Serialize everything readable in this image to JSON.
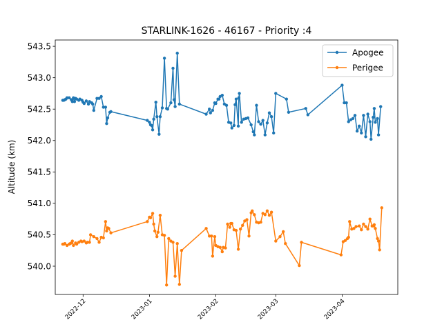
{
  "chart_data": {
    "type": "line",
    "title": "STARLINK-1626 - 46167 - Priority :4",
    "xlabel": "",
    "ylabel": "Altitude (km)",
    "ylim": [
      539.55,
      543.6
    ],
    "xlim": [
      "2022-11-18",
      "2023-04-27"
    ],
    "yticks": [
      540.0,
      540.5,
      541.0,
      541.5,
      542.0,
      542.5,
      543.0,
      543.5
    ],
    "ytick_labels": [
      "540.0",
      "540.5",
      "541.0",
      "541.5",
      "542.0",
      "542.5",
      "543.0",
      "543.5"
    ],
    "xticks": [
      "2022-12-01",
      "2023-01-01",
      "2023-02-01",
      "2023-03-01",
      "2023-04-01"
    ],
    "xtick_labels": [
      "2022-12",
      "2023-01",
      "2023-02",
      "2023-03",
      "2023-04"
    ],
    "legend_position": "upper right",
    "grid": false,
    "series": [
      {
        "name": "Apogee",
        "color": "#1f77b4",
        "marker": "circle",
        "points": [
          [
            "2022-11-21T12:00",
            542.64
          ],
          [
            "2022-11-22T00:00",
            542.64
          ],
          [
            "2022-11-22T12:00",
            542.65
          ],
          [
            "2022-11-23T00:00",
            542.66
          ],
          [
            "2022-11-23T12:00",
            542.68
          ],
          [
            "2022-11-24T12:00",
            542.68
          ],
          [
            "2022-11-25T12:00",
            542.65
          ],
          [
            "2022-11-26T00:00",
            542.62
          ],
          [
            "2022-11-26T12:00",
            542.68
          ],
          [
            "2022-11-27T00:00",
            542.62
          ],
          [
            "2022-11-27T12:00",
            542.67
          ],
          [
            "2022-11-28T00:00",
            542.66
          ],
          [
            "2022-11-29T00:00",
            542.64
          ],
          [
            "2022-11-29T12:00",
            542.66
          ],
          [
            "2022-11-30T12:00",
            542.64
          ],
          [
            "2022-12-01T00:00",
            542.61
          ],
          [
            "2022-12-01T12:00",
            542.59
          ],
          [
            "2022-12-02T12:00",
            542.63
          ],
          [
            "2022-12-03T12:00",
            542.58
          ],
          [
            "2022-12-04T00:00",
            542.62
          ],
          [
            "2022-12-05T00:00",
            542.6
          ],
          [
            "2022-12-05T12:00",
            542.58
          ],
          [
            "2022-12-06T00:00",
            542.48
          ],
          [
            "2022-12-07T12:00",
            542.67
          ],
          [
            "2022-12-08T12:00",
            542.67
          ],
          [
            "2022-12-09T12:00",
            542.7
          ],
          [
            "2022-12-10T12:00",
            542.53
          ],
          [
            "2022-12-11T12:00",
            542.53
          ],
          [
            "2022-12-12T00:00",
            542.27
          ],
          [
            "2022-12-12T12:00",
            542.36
          ],
          [
            "2022-12-13T12:00",
            542.45
          ],
          [
            "2022-12-14T00:00",
            542.46
          ],
          [
            "2022-12-31T00:00",
            542.32
          ],
          [
            "2023-01-01T00:00",
            542.29
          ],
          [
            "2023-01-01T12:00",
            542.25
          ],
          [
            "2023-01-02T00:00",
            542.24
          ],
          [
            "2023-01-02T12:00",
            542.17
          ],
          [
            "2023-01-03T00:00",
            542.34
          ],
          [
            "2023-01-04T00:00",
            542.61
          ],
          [
            "2023-01-04T12:00",
            542.38
          ],
          [
            "2023-01-05T12:00",
            542.1
          ],
          [
            "2023-01-06T00:00",
            542.38
          ],
          [
            "2023-01-07T00:00",
            542.52
          ],
          [
            "2023-01-08T00:00",
            543.31
          ],
          [
            "2023-01-09T00:00",
            542.51
          ],
          [
            "2023-01-09T12:00",
            542.5
          ],
          [
            "2023-01-11T00:00",
            542.6
          ],
          [
            "2023-01-12T00:00",
            543.15
          ],
          [
            "2023-01-12T12:00",
            542.65
          ],
          [
            "2023-01-13T00:00",
            542.54
          ],
          [
            "2023-01-14T00:00",
            543.39
          ],
          [
            "2023-01-15T00:00",
            542.58
          ],
          [
            "2023-01-27T12:00",
            542.42
          ],
          [
            "2023-01-29T00:00",
            542.5
          ],
          [
            "2023-01-29T12:00",
            542.44
          ],
          [
            "2023-01-30T12:00",
            542.48
          ],
          [
            "2023-01-31T12:00",
            542.6
          ],
          [
            "2023-02-01T00:00",
            542.59
          ],
          [
            "2023-02-02T00:00",
            542.66
          ],
          [
            "2023-02-02T12:00",
            542.66
          ],
          [
            "2023-02-03T00:00",
            542.7
          ],
          [
            "2023-02-04T00:00",
            542.72
          ],
          [
            "2023-02-05T00:00",
            542.58
          ],
          [
            "2023-02-06T00:00",
            542.56
          ],
          [
            "2023-02-07T00:00",
            542.29
          ],
          [
            "2023-02-08T00:00",
            542.28
          ],
          [
            "2023-02-08T12:00",
            542.2
          ],
          [
            "2023-02-09T12:00",
            542.24
          ],
          [
            "2023-02-10T00:00",
            542.57
          ],
          [
            "2023-02-10T12:00",
            542.66
          ],
          [
            "2023-02-11T12:00",
            542.23
          ],
          [
            "2023-02-11T18:00",
            542.68
          ],
          [
            "2023-02-12T00:00",
            542.75
          ],
          [
            "2023-02-13T00:00",
            542.29
          ],
          [
            "2023-02-14T00:00",
            542.34
          ],
          [
            "2023-02-15T00:00",
            542.35
          ],
          [
            "2023-02-16T00:00",
            542.36
          ],
          [
            "2023-02-17T12:00",
            542.25
          ],
          [
            "2023-02-18T12:00",
            542.14
          ],
          [
            "2023-02-19T00:00",
            542.09
          ],
          [
            "2023-02-20T00:00",
            542.56
          ],
          [
            "2023-02-21T00:00",
            542.3
          ],
          [
            "2023-02-22T00:00",
            542.26
          ],
          [
            "2023-02-23T00:00",
            542.32
          ],
          [
            "2023-02-24T00:00",
            542.09
          ],
          [
            "2023-02-25T00:00",
            542.28
          ],
          [
            "2023-02-26T00:00",
            542.44
          ],
          [
            "2023-02-27T00:00",
            542.38
          ],
          [
            "2023-02-28T00:00",
            542.12
          ],
          [
            "2023-03-01T00:00",
            542.75
          ],
          [
            "2023-03-06T00:00",
            542.66
          ],
          [
            "2023-03-07T00:00",
            542.45
          ],
          [
            "2023-03-15T00:00",
            542.51
          ],
          [
            "2023-03-16T00:00",
            542.41
          ],
          [
            "2023-04-01T00:00",
            542.88
          ],
          [
            "2023-04-02T00:00",
            542.6
          ],
          [
            "2023-04-03T00:00",
            542.6
          ],
          [
            "2023-04-04T00:00",
            542.3
          ],
          [
            "2023-04-05T00:00",
            542.33
          ],
          [
            "2023-04-06T00:00",
            542.35
          ],
          [
            "2023-04-07T00:00",
            542.4
          ],
          [
            "2023-04-08T00:00",
            542.15
          ],
          [
            "2023-04-09T00:00",
            542.23
          ],
          [
            "2023-04-10T00:00",
            542.12
          ],
          [
            "2023-04-11T00:00",
            542.4
          ],
          [
            "2023-04-12T00:00",
            542.06
          ],
          [
            "2023-04-13T00:00",
            542.42
          ],
          [
            "2023-04-14T00:00",
            542.3
          ],
          [
            "2023-04-14T12:00",
            542.02
          ],
          [
            "2023-04-15T12:00",
            542.37
          ],
          [
            "2023-04-16T00:00",
            542.51
          ],
          [
            "2023-04-16T12:00",
            542.29
          ],
          [
            "2023-04-17T12:00",
            542.35
          ],
          [
            "2023-04-18T00:00",
            542.09
          ],
          [
            "2023-04-19T00:00",
            542.54
          ]
        ]
      },
      {
        "name": "Perigee",
        "color": "#ff7f0e",
        "marker": "circle",
        "points": [
          [
            "2022-11-21T12:00",
            540.35
          ],
          [
            "2022-11-22T00:00",
            540.35
          ],
          [
            "2022-11-22T12:00",
            540.36
          ],
          [
            "2022-11-23T12:00",
            540.33
          ],
          [
            "2022-11-24T12:00",
            540.35
          ],
          [
            "2022-11-25T00:00",
            540.36
          ],
          [
            "2022-11-25T12:00",
            540.37
          ],
          [
            "2022-11-26T00:00",
            540.4
          ],
          [
            "2022-11-26T12:00",
            540.33
          ],
          [
            "2022-11-27T12:00",
            540.37
          ],
          [
            "2022-11-28T00:00",
            540.35
          ],
          [
            "2022-11-29T00:00",
            540.38
          ],
          [
            "2022-11-30T00:00",
            540.4
          ],
          [
            "2022-11-30T12:00",
            540.39
          ],
          [
            "2022-12-01T12:00",
            540.4
          ],
          [
            "2022-12-02T12:00",
            540.37
          ],
          [
            "2022-12-03T00:00",
            540.38
          ],
          [
            "2022-12-04T00:00",
            540.38
          ],
          [
            "2022-12-04T12:00",
            540.5
          ],
          [
            "2022-12-06T00:00",
            540.47
          ],
          [
            "2022-12-07T12:00",
            540.44
          ],
          [
            "2022-12-08T12:00",
            540.38
          ],
          [
            "2022-12-09T12:00",
            540.46
          ],
          [
            "2022-12-10T12:00",
            540.45
          ],
          [
            "2022-12-11T12:00",
            540.71
          ],
          [
            "2022-12-12T00:00",
            540.56
          ],
          [
            "2022-12-12T12:00",
            540.61
          ],
          [
            "2022-12-13T00:00",
            540.6
          ],
          [
            "2022-12-14T00:00",
            540.53
          ],
          [
            "2022-12-31T00:00",
            540.71
          ],
          [
            "2023-01-01T00:00",
            540.78
          ],
          [
            "2023-01-01T12:00",
            540.77
          ],
          [
            "2023-01-02T12:00",
            540.84
          ],
          [
            "2023-01-03T00:00",
            540.67
          ],
          [
            "2023-01-03T12:00",
            540.56
          ],
          [
            "2023-01-04T12:00",
            540.47
          ],
          [
            "2023-01-05T00:00",
            540.54
          ],
          [
            "2023-01-06T00:00",
            540.81
          ],
          [
            "2023-01-07T00:00",
            540.5
          ],
          [
            "2023-01-08T00:00",
            540.49
          ],
          [
            "2023-01-09T00:00",
            539.7
          ],
          [
            "2023-01-10T00:00",
            540.44
          ],
          [
            "2023-01-11T00:00",
            540.4
          ],
          [
            "2023-01-12T00:00",
            540.38
          ],
          [
            "2023-01-13T00:00",
            539.84
          ],
          [
            "2023-01-14T00:00",
            540.36
          ],
          [
            "2023-01-15T00:00",
            539.71
          ],
          [
            "2023-01-16T00:00",
            540.25
          ],
          [
            "2023-01-27T12:00",
            540.6
          ],
          [
            "2023-01-29T00:00",
            540.48
          ],
          [
            "2023-01-30T00:00",
            540.48
          ],
          [
            "2023-01-30T12:00",
            540.16
          ],
          [
            "2023-01-31T12:00",
            540.47
          ],
          [
            "2023-02-01T00:00",
            540.33
          ],
          [
            "2023-02-02T00:00",
            540.31
          ],
          [
            "2023-02-03T00:00",
            540.3
          ],
          [
            "2023-02-04T00:00",
            540.23
          ],
          [
            "2023-02-04T12:00",
            540.3
          ],
          [
            "2023-02-05T12:00",
            540.29
          ],
          [
            "2023-02-06T12:00",
            540.67
          ],
          [
            "2023-02-07T12:00",
            540.62
          ],
          [
            "2023-02-08T00:00",
            540.68
          ],
          [
            "2023-02-08T12:00",
            540.68
          ],
          [
            "2023-02-09T12:00",
            540.58
          ],
          [
            "2023-02-10T12:00",
            540.57
          ],
          [
            "2023-02-11T12:00",
            540.27
          ],
          [
            "2023-02-12T12:00",
            540.59
          ],
          [
            "2023-02-13T12:00",
            540.65
          ],
          [
            "2023-02-14T12:00",
            540.72
          ],
          [
            "2023-02-15T12:00",
            540.74
          ],
          [
            "2023-02-16T12:00",
            540.48
          ],
          [
            "2023-02-17T12:00",
            540.85
          ],
          [
            "2023-02-18T00:00",
            540.88
          ],
          [
            "2023-02-19T00:00",
            540.82
          ],
          [
            "2023-02-20T00:00",
            540.7
          ],
          [
            "2023-02-21T00:00",
            540.69
          ],
          [
            "2023-02-22T00:00",
            540.7
          ],
          [
            "2023-02-23T00:00",
            540.84
          ],
          [
            "2023-02-24T00:00",
            540.82
          ],
          [
            "2023-02-25T00:00",
            540.88
          ],
          [
            "2023-02-26T00:00",
            540.81
          ],
          [
            "2023-02-27T00:00",
            540.86
          ],
          [
            "2023-03-01T00:00",
            540.4
          ],
          [
            "2023-03-03T00:00",
            540.47
          ],
          [
            "2023-03-04T12:00",
            540.55
          ],
          [
            "2023-03-05T12:00",
            540.36
          ],
          [
            "2023-03-12T00:00",
            540.01
          ],
          [
            "2023-03-13T00:00",
            540.38
          ],
          [
            "2023-03-31T12:00",
            540.18
          ],
          [
            "2023-04-01T12:00",
            540.39
          ],
          [
            "2023-04-02T12:00",
            540.41
          ],
          [
            "2023-04-03T12:00",
            540.44
          ],
          [
            "2023-04-04T00:00",
            540.46
          ],
          [
            "2023-04-04T12:00",
            540.71
          ],
          [
            "2023-04-05T12:00",
            540.59
          ],
          [
            "2023-04-06T12:00",
            540.6
          ],
          [
            "2023-04-07T12:00",
            540.63
          ],
          [
            "2023-04-09T00:00",
            540.64
          ],
          [
            "2023-04-10T00:00",
            540.58
          ],
          [
            "2023-04-11T00:00",
            540.67
          ],
          [
            "2023-04-12T00:00",
            540.63
          ],
          [
            "2023-04-13T00:00",
            540.59
          ],
          [
            "2023-04-14T00:00",
            540.75
          ],
          [
            "2023-04-15T00:00",
            540.64
          ],
          [
            "2023-04-15T12:00",
            540.64
          ],
          [
            "2023-04-16T00:00",
            540.66
          ],
          [
            "2023-04-16T12:00",
            540.6
          ],
          [
            "2023-04-17T12:00",
            540.44
          ],
          [
            "2023-04-18T00:00",
            540.4
          ],
          [
            "2023-04-18T12:00",
            540.26
          ],
          [
            "2023-04-19T12:00",
            540.93
          ]
        ]
      }
    ]
  }
}
